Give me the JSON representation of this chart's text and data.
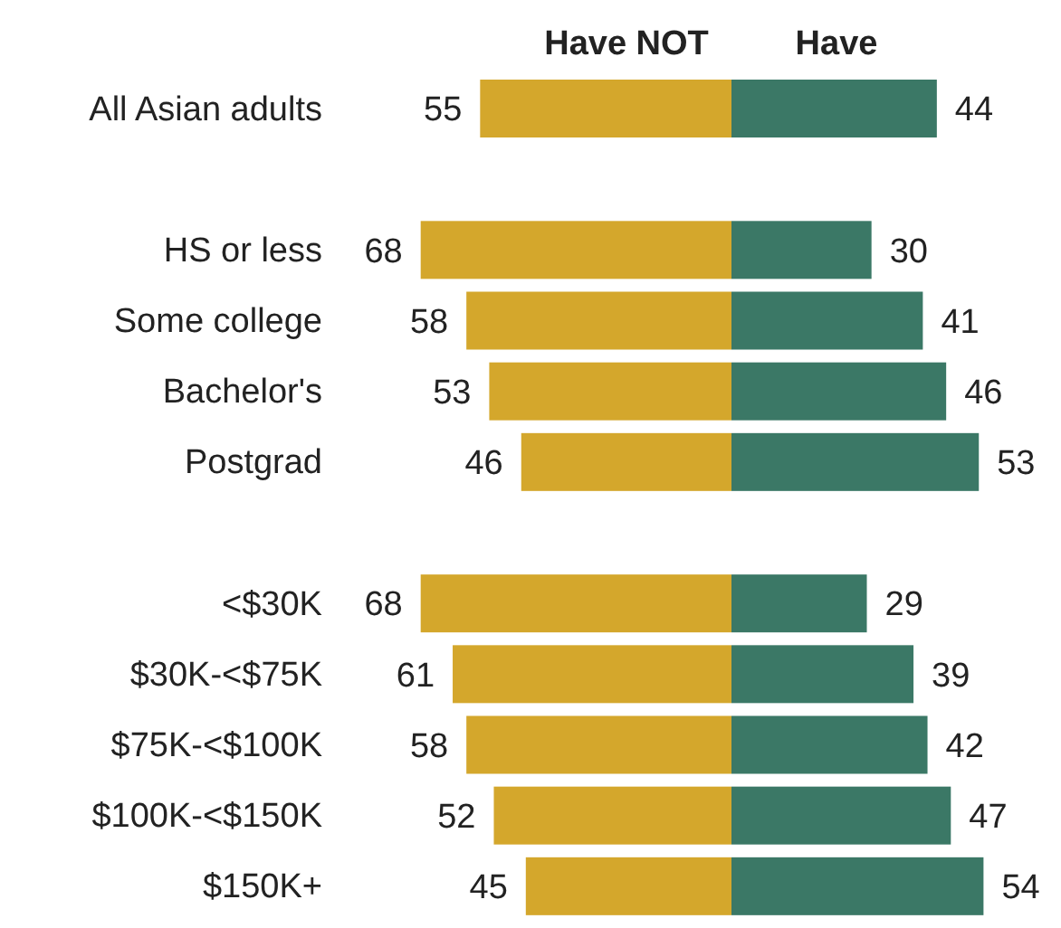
{
  "chart_data": [
    {
      "type": "bar",
      "orientation": "horizontal",
      "title": "Have NOT",
      "categories": [
        "All Asian adults",
        null,
        "HS or less",
        "Some college",
        "Bachelor's",
        "Postgrad",
        null,
        "<$30K",
        "$30K-<$75K",
        "$75K-<$100K",
        "$100K-<$150K",
        "$150K+"
      ],
      "series": [
        {
          "color": "#d4a72c",
          "values": [
            55,
            null,
            68,
            58,
            53,
            46,
            null,
            68,
            61,
            58,
            52,
            45
          ]
        }
      ],
      "data_labels": true,
      "tick_labels": "y"
    },
    {
      "type": "bar",
      "orientation": "horizontal",
      "title": "Have",
      "categories": [
        null,
        null,
        null,
        null,
        null,
        null,
        null,
        null,
        null,
        null,
        null,
        null
      ],
      "series": [
        {
          "color": "#3b7866",
          "values": [
            44,
            null,
            30,
            41,
            46,
            53,
            null,
            29,
            39,
            42,
            47,
            54
          ]
        }
      ],
      "data_labels": true,
      "tick_labels": false
    }
  ]
}
